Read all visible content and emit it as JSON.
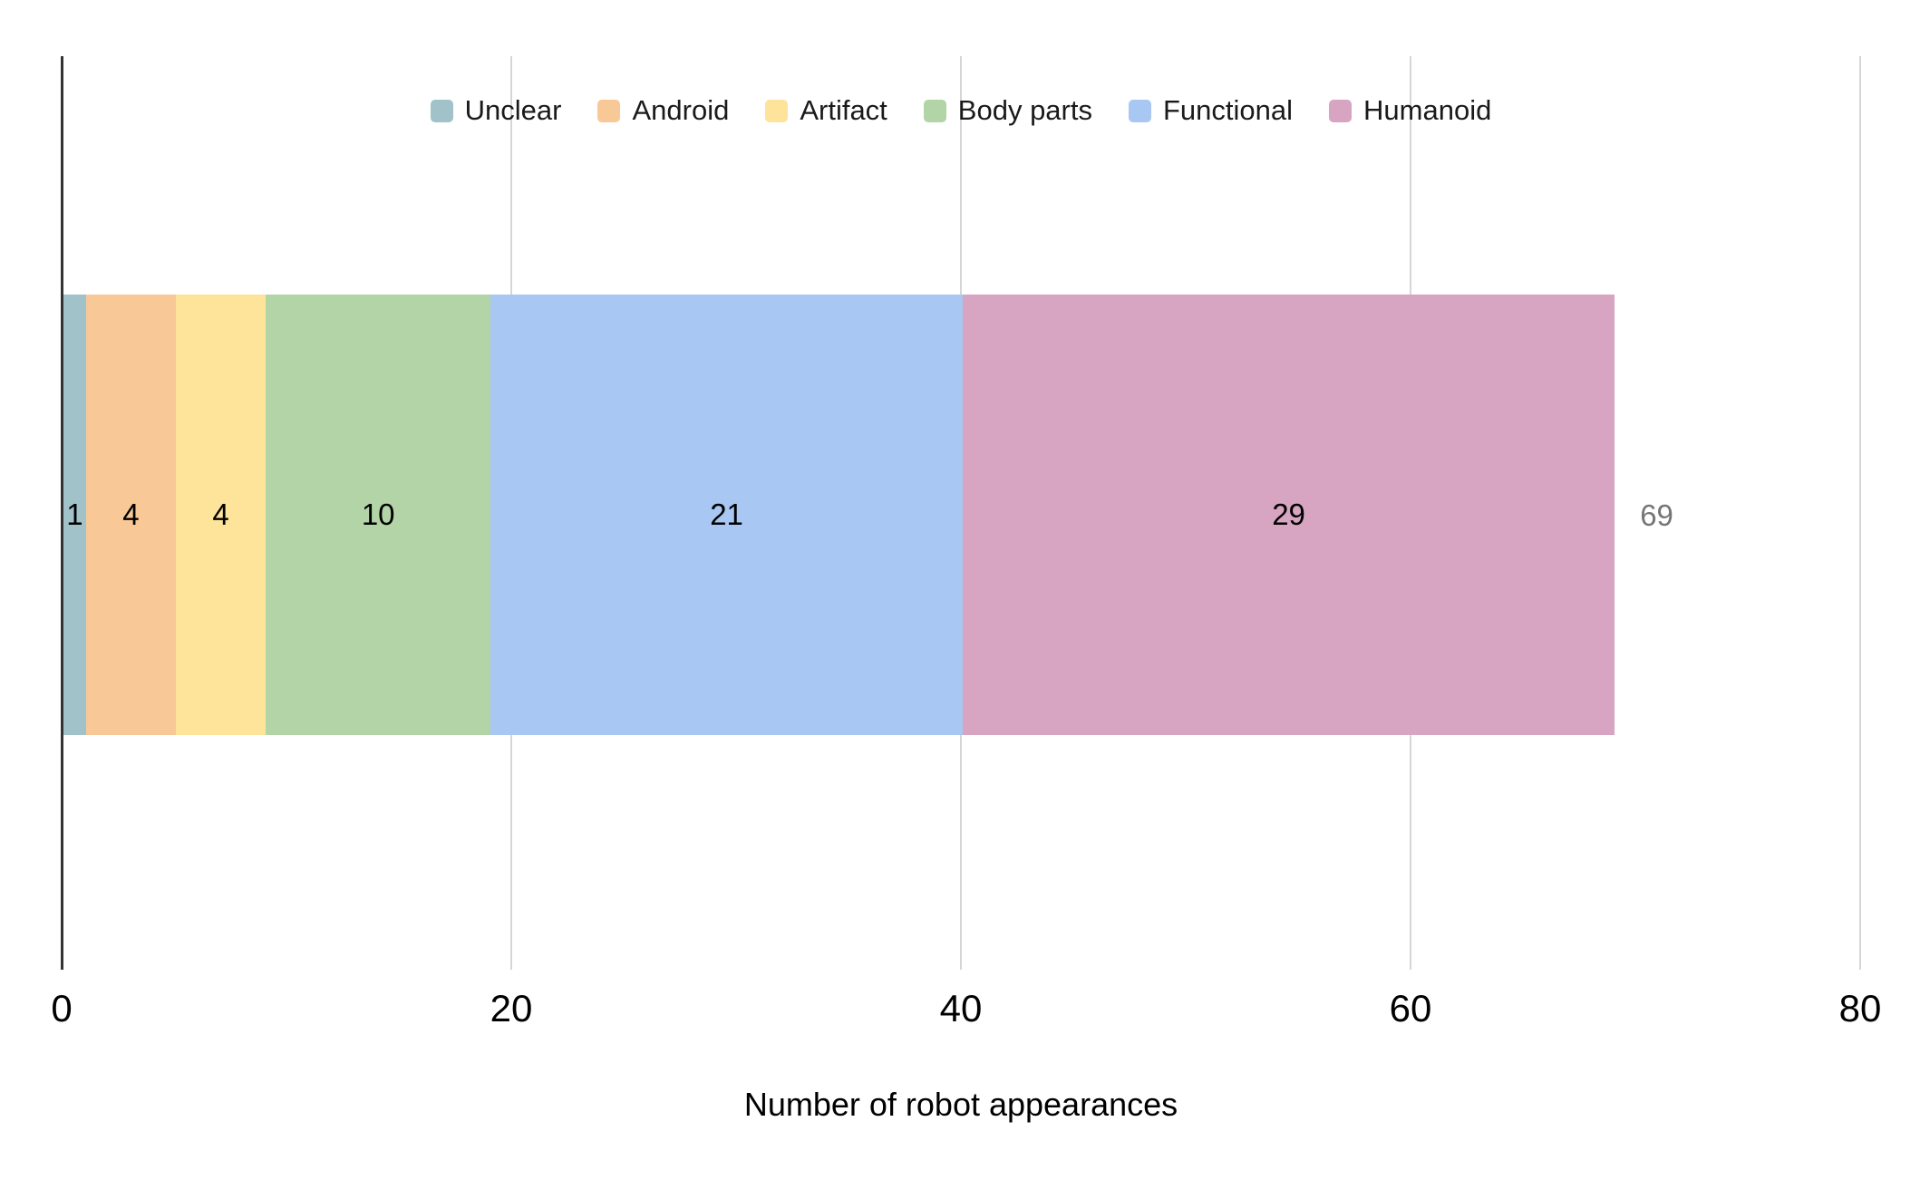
{
  "chart_data": {
    "type": "bar",
    "variant": "horizontal-stacked",
    "title": "",
    "xlabel": "Number of robot appearances",
    "ylabel": "",
    "xlim": [
      0,
      80
    ],
    "x_ticks": [
      0,
      20,
      40,
      60,
      80
    ],
    "grid": true,
    "legend_position": "top-center",
    "series": [
      {
        "name": "Unclear",
        "value": 1,
        "color": "#a2c2c9"
      },
      {
        "name": "Android",
        "value": 4,
        "color": "#f8c897"
      },
      {
        "name": "Artifact",
        "value": 4,
        "color": "#fde49a"
      },
      {
        "name": "Body parts",
        "value": 10,
        "color": "#b2d4a7"
      },
      {
        "name": "Functional",
        "value": 21,
        "color": "#a8c7f2"
      },
      {
        "name": "Humanoid",
        "value": 29,
        "color": "#d7a4c1"
      }
    ],
    "total": 69,
    "colors": {
      "gridline": "#d6d6d6",
      "axis_line": "#333333",
      "tick_text": "#000000",
      "segment_text": "#000000",
      "total_text": "#757575",
      "background": "#ffffff"
    }
  }
}
